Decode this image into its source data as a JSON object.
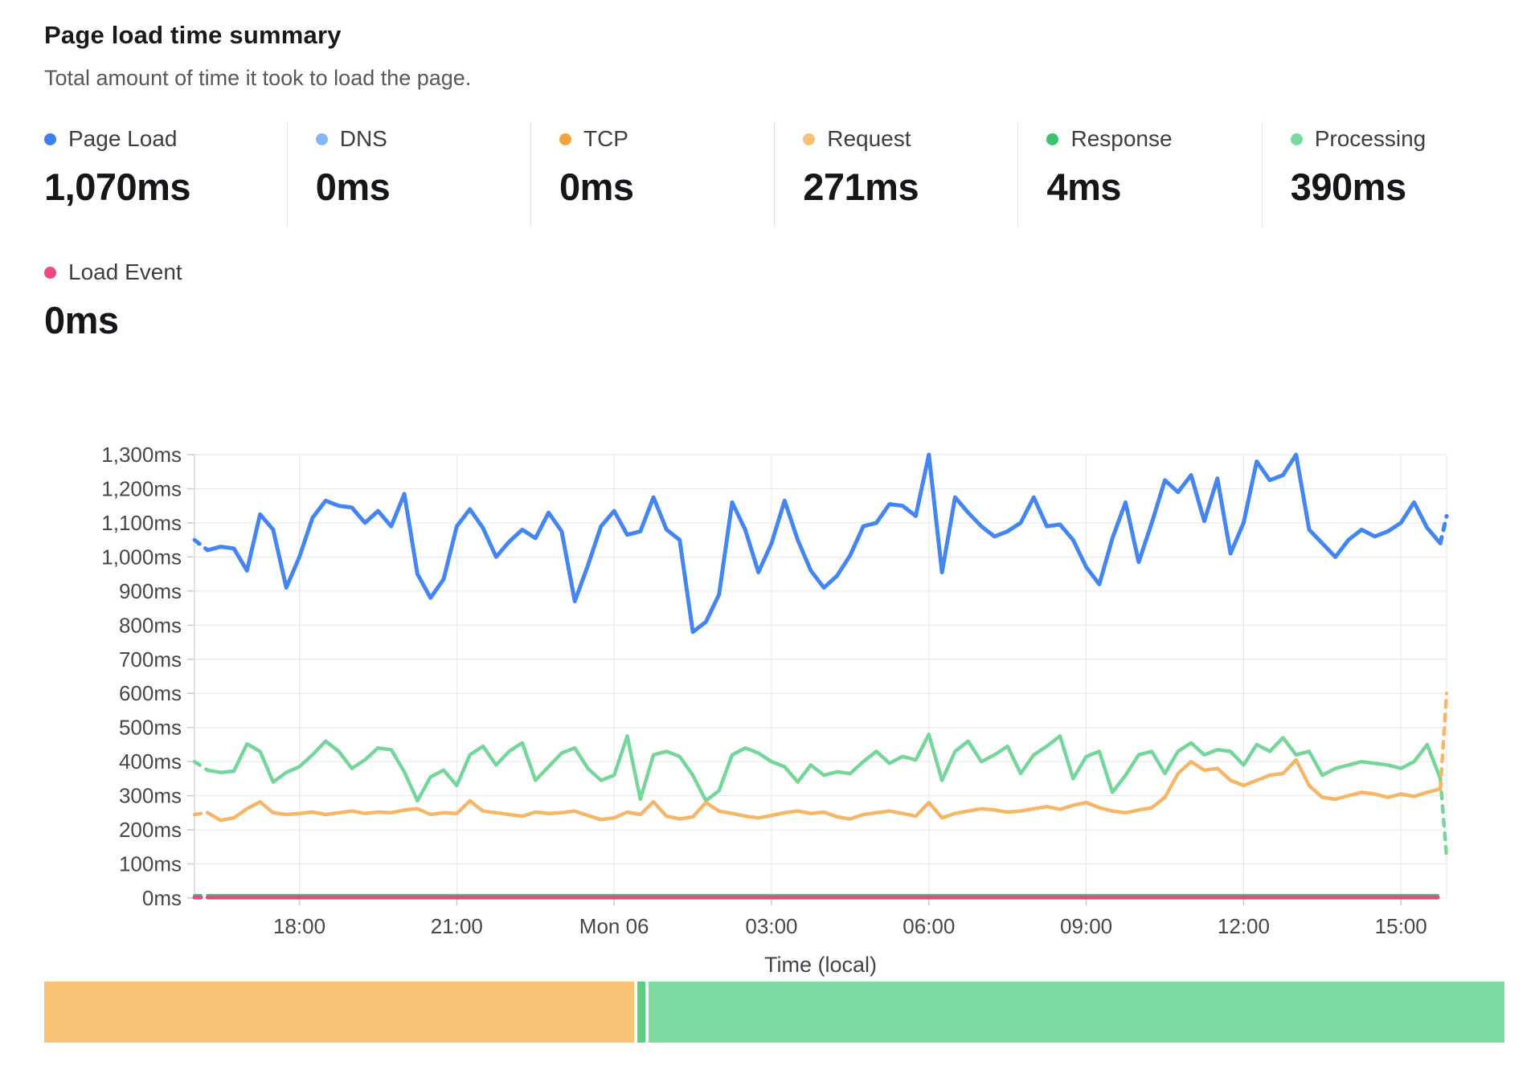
{
  "header": {
    "title": "Page load time summary",
    "subtitle": "Total amount of time it took to load the page."
  },
  "stats": [
    {
      "label": "Page Load",
      "value": "1,070ms",
      "color": "#3e7ef3"
    },
    {
      "label": "DNS",
      "value": "0ms",
      "color": "#84b6f8"
    },
    {
      "label": "TCP",
      "value": "0ms",
      "color": "#f3a43d"
    },
    {
      "label": "Request",
      "value": "271ms",
      "color": "#f7c073"
    },
    {
      "label": "Response",
      "value": "4ms",
      "color": "#3bc26f"
    },
    {
      "label": "Processing",
      "value": "390ms",
      "color": "#79d99e"
    }
  ],
  "stats_row2": [
    {
      "label": "Load Event",
      "value": "0ms",
      "color": "#ef4981"
    }
  ],
  "chart_data": {
    "type": "line",
    "title": "Page load time summary",
    "x_axis": {
      "label": "Time (local)",
      "start_hour": 16.0,
      "end_hour": 39.87,
      "interval_hours": 0.25,
      "tick_hours": [
        18,
        21,
        24,
        27,
        30,
        33,
        36,
        39
      ],
      "tick_labels": [
        "18:00",
        "21:00",
        "Mon 06",
        "03:00",
        "06:00",
        "09:00",
        "12:00",
        "15:00"
      ]
    },
    "y_axis": {
      "min": 0,
      "max": 1300,
      "step": 100,
      "tick_labels": [
        "0ms",
        "100ms",
        "200ms",
        "300ms",
        "400ms",
        "500ms",
        "600ms",
        "700ms",
        "800ms",
        "900ms",
        "1,000ms",
        "1,100ms",
        "1,200ms",
        "1,300ms"
      ]
    },
    "grid": true,
    "legend_position": "top-stats",
    "series": [
      {
        "name": "Processing",
        "color": "#75d69b",
        "width": 4.5,
        "partial_end": 120,
        "values": [
          400,
          375,
          368,
          372,
          452,
          430,
          340,
          368,
          385,
          420,
          460,
          430,
          380,
          405,
          440,
          435,
          370,
          285,
          355,
          375,
          330,
          420,
          445,
          390,
          430,
          455,
          345,
          385,
          425,
          440,
          380,
          345,
          360,
          475,
          290,
          420,
          430,
          415,
          360,
          285,
          315,
          420,
          440,
          425,
          400,
          385,
          340,
          390,
          360,
          370,
          365,
          400,
          430,
          395,
          415,
          405,
          480,
          345,
          430,
          460,
          400,
          420,
          445,
          365,
          420,
          445,
          475,
          350,
          415,
          430,
          310,
          360,
          420,
          430,
          365,
          430,
          455,
          420,
          435,
          430,
          390,
          450,
          430,
          470,
          420,
          430,
          360,
          380,
          390,
          400,
          395,
          390,
          380,
          400,
          450,
          350
        ]
      },
      {
        "name": "Request",
        "color": "#f5b767",
        "width": 4.5,
        "partial_end": 600,
        "values": [
          245,
          250,
          228,
          235,
          262,
          282,
          250,
          245,
          248,
          252,
          245,
          250,
          255,
          248,
          252,
          250,
          258,
          262,
          245,
          250,
          248,
          285,
          255,
          250,
          245,
          240,
          252,
          248,
          250,
          255,
          242,
          230,
          235,
          252,
          245,
          282,
          240,
          232,
          238,
          280,
          255,
          248,
          240,
          235,
          242,
          250,
          255,
          248,
          252,
          238,
          232,
          245,
          250,
          255,
          248,
          240,
          280,
          235,
          248,
          255,
          262,
          258,
          252,
          255,
          262,
          268,
          260,
          272,
          280,
          265,
          255,
          250,
          258,
          265,
          295,
          365,
          400,
          375,
          380,
          345,
          330,
          345,
          360,
          365,
          405,
          330,
          295,
          290,
          300,
          310,
          305,
          295,
          305,
          298,
          310,
          320
        ]
      },
      {
        "name": "Response",
        "color": "#42c377",
        "width": 3.5,
        "constant": 8,
        "end_hour": 39.7
      },
      {
        "name": "Load Event",
        "color": "#e84980",
        "width": 5,
        "constant": 2,
        "end_hour": 39.7
      },
      {
        "name": "Page Load",
        "color": "#4385f4",
        "width": 5,
        "partial_end": 1120,
        "values": [
          1050,
          1020,
          1030,
          1025,
          960,
          1125,
          1080,
          910,
          1000,
          1115,
          1165,
          1150,
          1145,
          1100,
          1135,
          1090,
          1185,
          950,
          880,
          935,
          1090,
          1140,
          1085,
          1000,
          1045,
          1080,
          1055,
          1130,
          1075,
          870,
          975,
          1090,
          1135,
          1065,
          1075,
          1175,
          1080,
          1050,
          780,
          810,
          890,
          1160,
          1080,
          955,
          1040,
          1165,
          1050,
          960,
          910,
          945,
          1005,
          1090,
          1100,
          1155,
          1150,
          1120,
          1300,
          955,
          1175,
          1130,
          1090,
          1060,
          1075,
          1100,
          1175,
          1090,
          1095,
          1050,
          970,
          920,
          1055,
          1160,
          985,
          1100,
          1225,
          1190,
          1240,
          1105,
          1230,
          1010,
          1100,
          1280,
          1225,
          1240,
          1300,
          1080,
          1040,
          1000,
          1050,
          1080,
          1060,
          1075,
          1100,
          1160,
          1085,
          1040
        ]
      }
    ],
    "style": {
      "grid_color": "#e6e6e9",
      "axis_line_color": "#d8d8dd",
      "tick_color": "#c9c9ce",
      "tick_label_color": "#44474c",
      "axis_title_color": "#3f444a"
    }
  },
  "footer_bar": {
    "segments": [
      {
        "name": "request-share",
        "color": "#f8c173",
        "fraction": 0.404
      },
      {
        "name": "divider-share",
        "color": "#5bce82",
        "fraction": 0.005
      },
      {
        "name": "processing-share",
        "color": "#7cdba1",
        "fraction": 0.586
      }
    ]
  }
}
